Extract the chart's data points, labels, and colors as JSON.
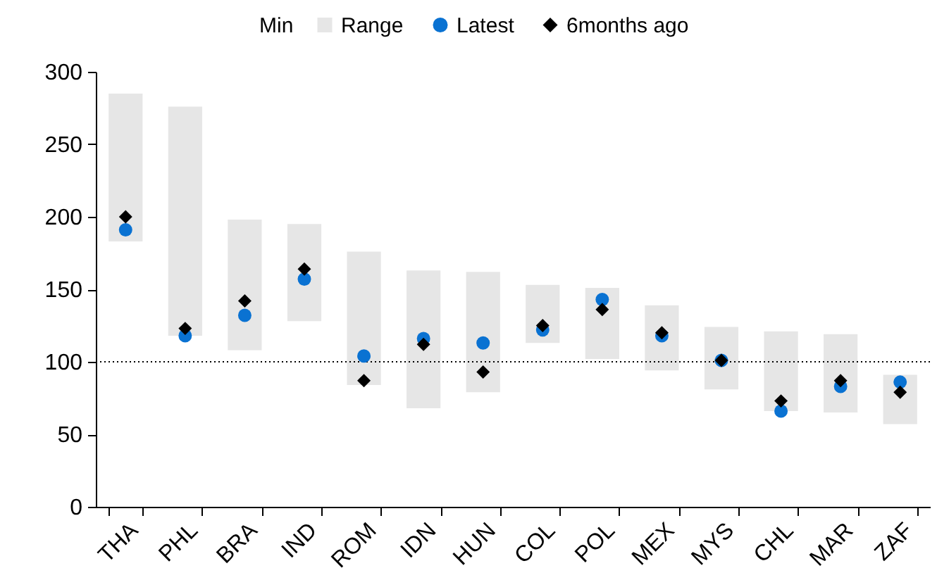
{
  "chart_data": {
    "type": "bar",
    "categories": [
      "THA",
      "PHL",
      "BRA",
      "IND",
      "ROM",
      "IDN",
      "HUN",
      "COL",
      "POL",
      "MEX",
      "MYS",
      "CHL",
      "MAR",
      "ZAF"
    ],
    "series": [
      {
        "name": "Range",
        "color": "#e6e6e6",
        "base": [
          183,
          118,
          108,
          128,
          84,
          68,
          79,
          113,
          102,
          94,
          81,
          66,
          65,
          57
        ],
        "values": [
          102,
          158,
          90,
          67,
          92,
          95,
          83,
          40,
          49,
          45,
          43,
          55,
          54,
          34
        ]
      },
      {
        "name": "Latest",
        "type": "scatter",
        "marker": "circle",
        "color": "#0a72d2",
        "values": [
          191,
          118,
          132,
          157,
          104,
          116,
          113,
          122,
          143,
          118,
          101,
          66,
          83,
          86
        ]
      },
      {
        "name": "6months ago",
        "type": "scatter",
        "marker": "diamond",
        "color": "#000000",
        "values": [
          200,
          123,
          142,
          164,
          87,
          112,
          93,
          125,
          136,
          120,
          101,
          73,
          87,
          79
        ]
      }
    ],
    "annotations": [
      "Min"
    ],
    "ylim": [
      0,
      300
    ],
    "yticks": [
      0,
      50,
      100,
      150,
      200,
      250,
      300
    ],
    "ref_lines": [
      {
        "axis": "y",
        "value": 100,
        "color": "#000000",
        "line_style": "dotted"
      }
    ],
    "legend": "top"
  }
}
